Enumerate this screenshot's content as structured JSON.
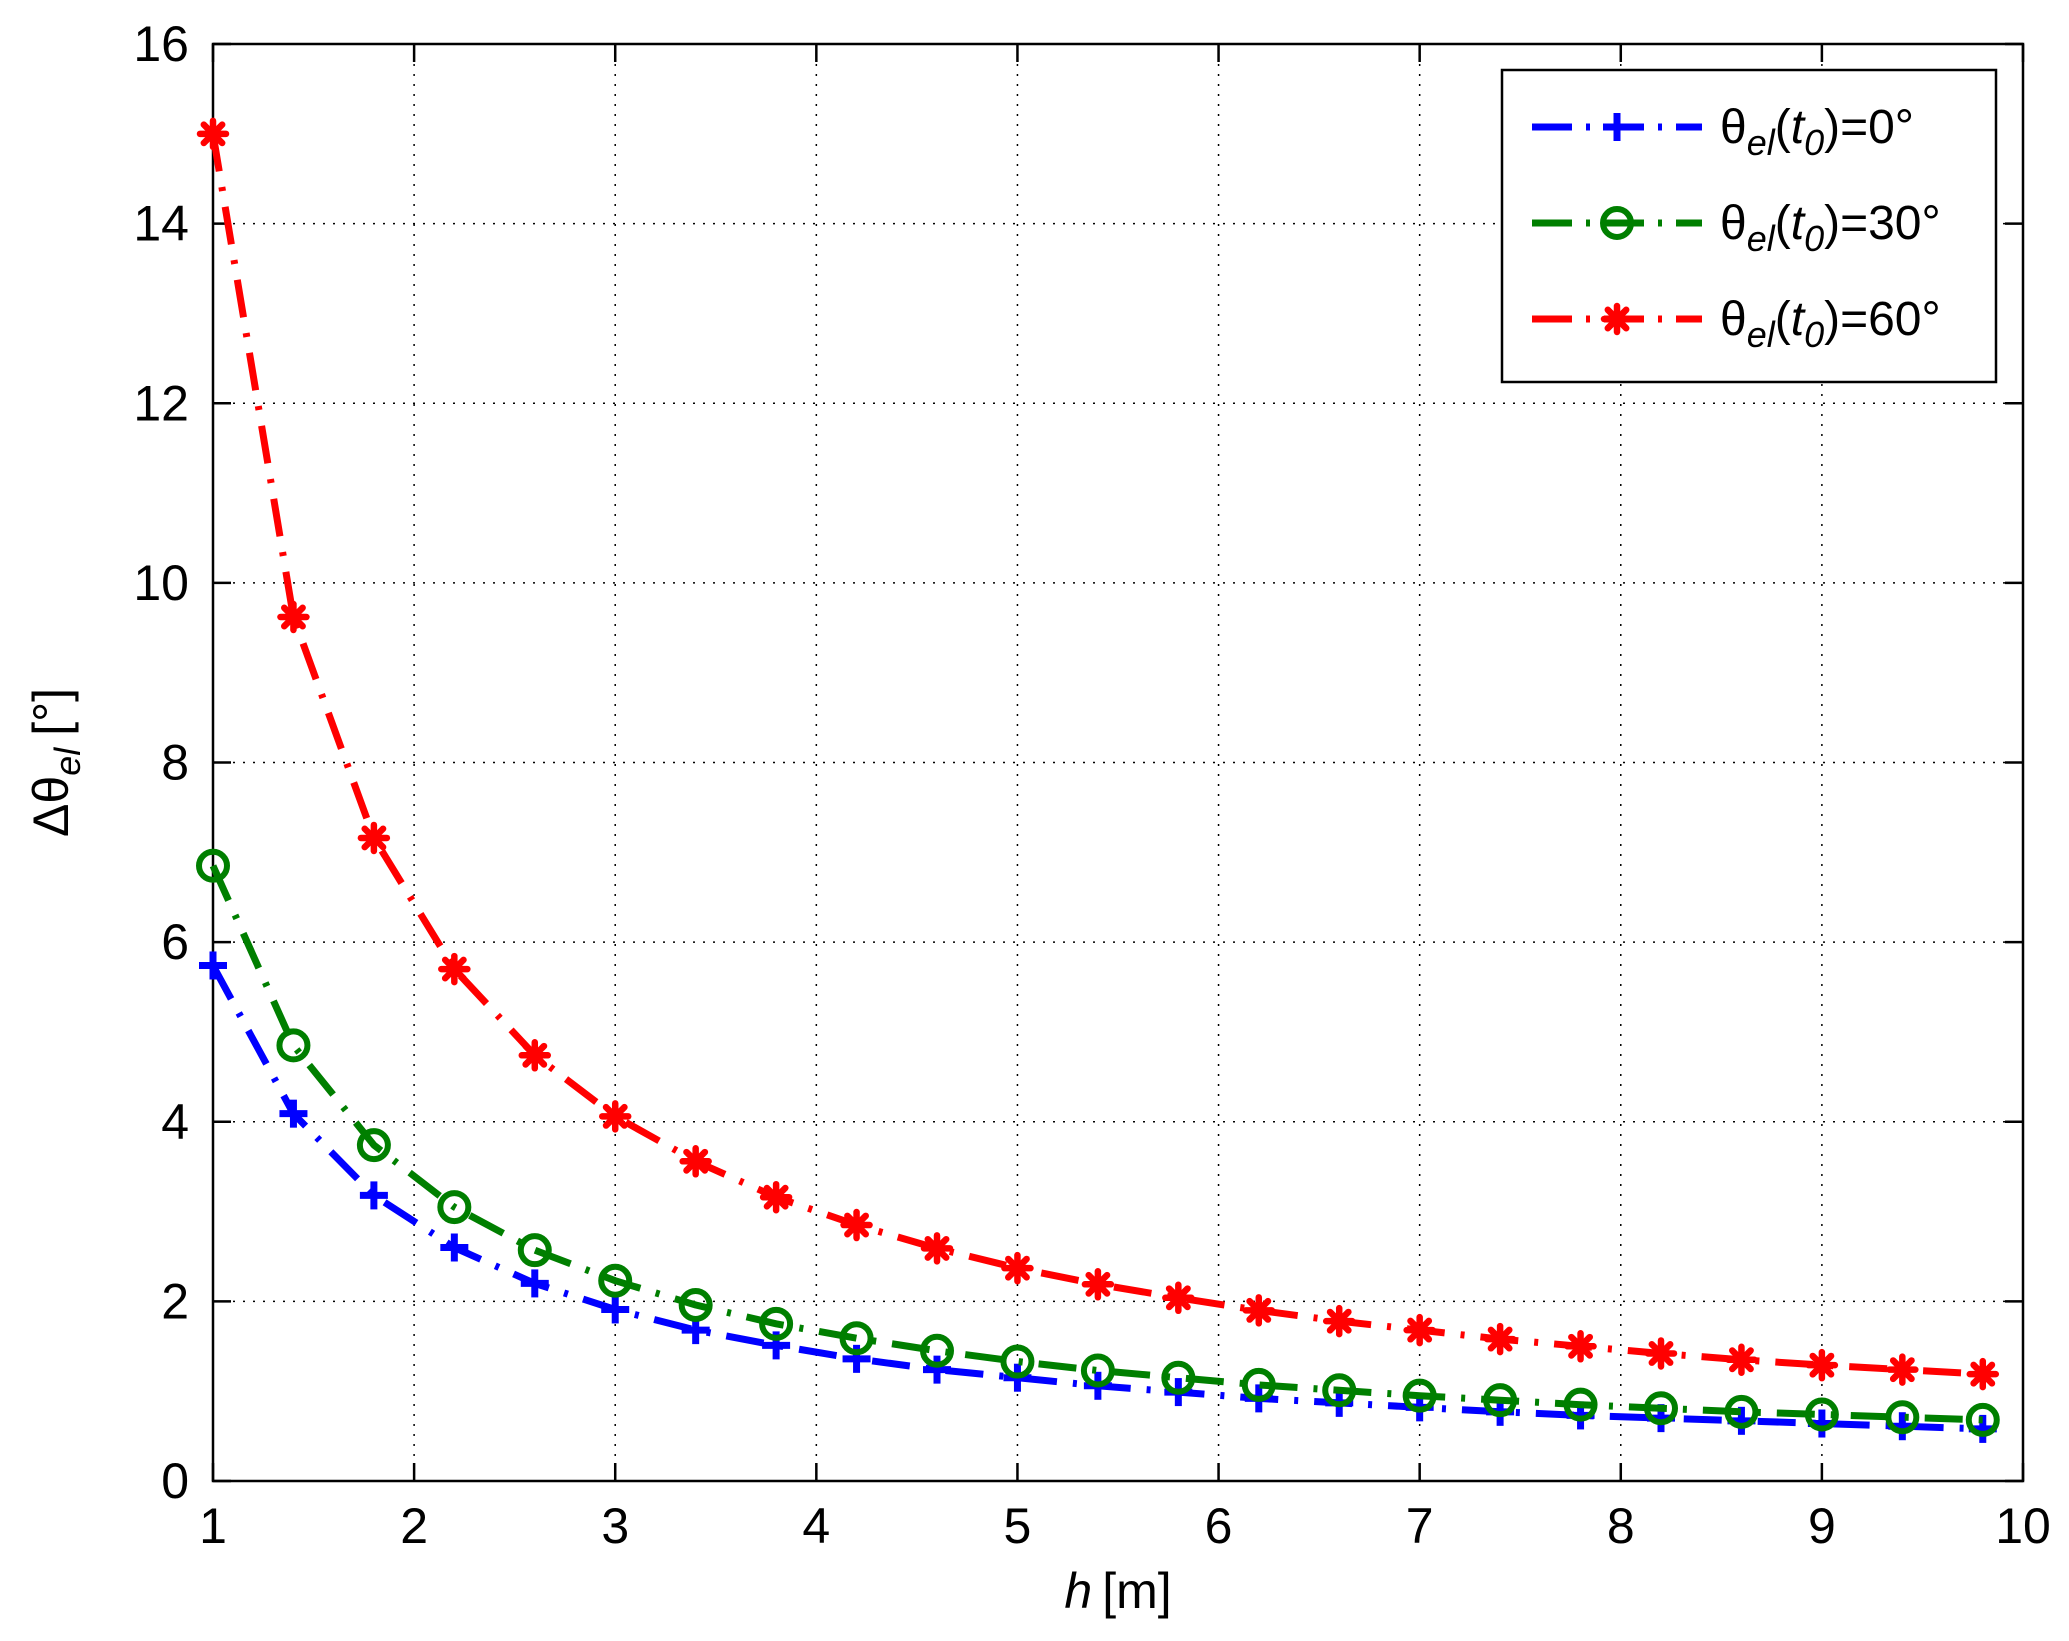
{
  "chart_data": {
    "type": "line",
    "xlabel": {
      "var": "h",
      "unit": "[m]"
    },
    "ylabel": {
      "prefix": "Δθ",
      "sub": "el",
      "unit": "[°]"
    },
    "xlim": [
      1,
      10
    ],
    "ylim": [
      0,
      16
    ],
    "xticks": [
      1,
      2,
      3,
      4,
      5,
      6,
      7,
      8,
      9,
      10
    ],
    "yticks": [
      0,
      2,
      4,
      6,
      8,
      10,
      12,
      14,
      16
    ],
    "grid": true,
    "legend_position": "top-right",
    "x": [
      1.0,
      1.4,
      1.8,
      2.2,
      2.6,
      3.0,
      3.4,
      3.8,
      4.2,
      4.6,
      5.0,
      5.4,
      5.8,
      6.2,
      6.6,
      7.0,
      7.4,
      7.8,
      8.2,
      8.6,
      9.0,
      9.4,
      9.8
    ],
    "series": [
      {
        "legend": {
          "theta": "θ",
          "sub": "el",
          "paren_open": "(",
          "t": "t",
          "tsub": "0",
          "suffix": ")=0°"
        },
        "color": "#0000ff",
        "marker": "plus",
        "values": [
          5.74,
          4.09,
          3.18,
          2.6,
          2.2,
          1.91,
          1.68,
          1.51,
          1.36,
          1.24,
          1.15,
          1.06,
          0.99,
          0.92,
          0.87,
          0.82,
          0.77,
          0.73,
          0.7,
          0.67,
          0.64,
          0.61,
          0.58
        ]
      },
      {
        "legend": {
          "theta": "θ",
          "sub": "el",
          "paren_open": "(",
          "t": "t",
          "tsub": "0",
          "suffix": ")=30°"
        },
        "color": "#007f00",
        "marker": "circle",
        "values": [
          6.85,
          4.85,
          3.74,
          3.05,
          2.57,
          2.23,
          1.96,
          1.75,
          1.59,
          1.45,
          1.33,
          1.23,
          1.15,
          1.07,
          1.01,
          0.95,
          0.9,
          0.85,
          0.81,
          0.77,
          0.74,
          0.71,
          0.68
        ]
      },
      {
        "legend": {
          "theta": "θ",
          "sub": "el",
          "paren_open": "(",
          "t": "t",
          "tsub": "0",
          "suffix": ")=60°"
        },
        "color": "#ff0000",
        "marker": "asterisk",
        "values": [
          15.0,
          9.62,
          7.16,
          5.7,
          4.74,
          4.06,
          3.56,
          3.16,
          2.85,
          2.59,
          2.37,
          2.19,
          2.04,
          1.9,
          1.78,
          1.68,
          1.58,
          1.5,
          1.42,
          1.35,
          1.29,
          1.24,
          1.19
        ]
      }
    ]
  }
}
